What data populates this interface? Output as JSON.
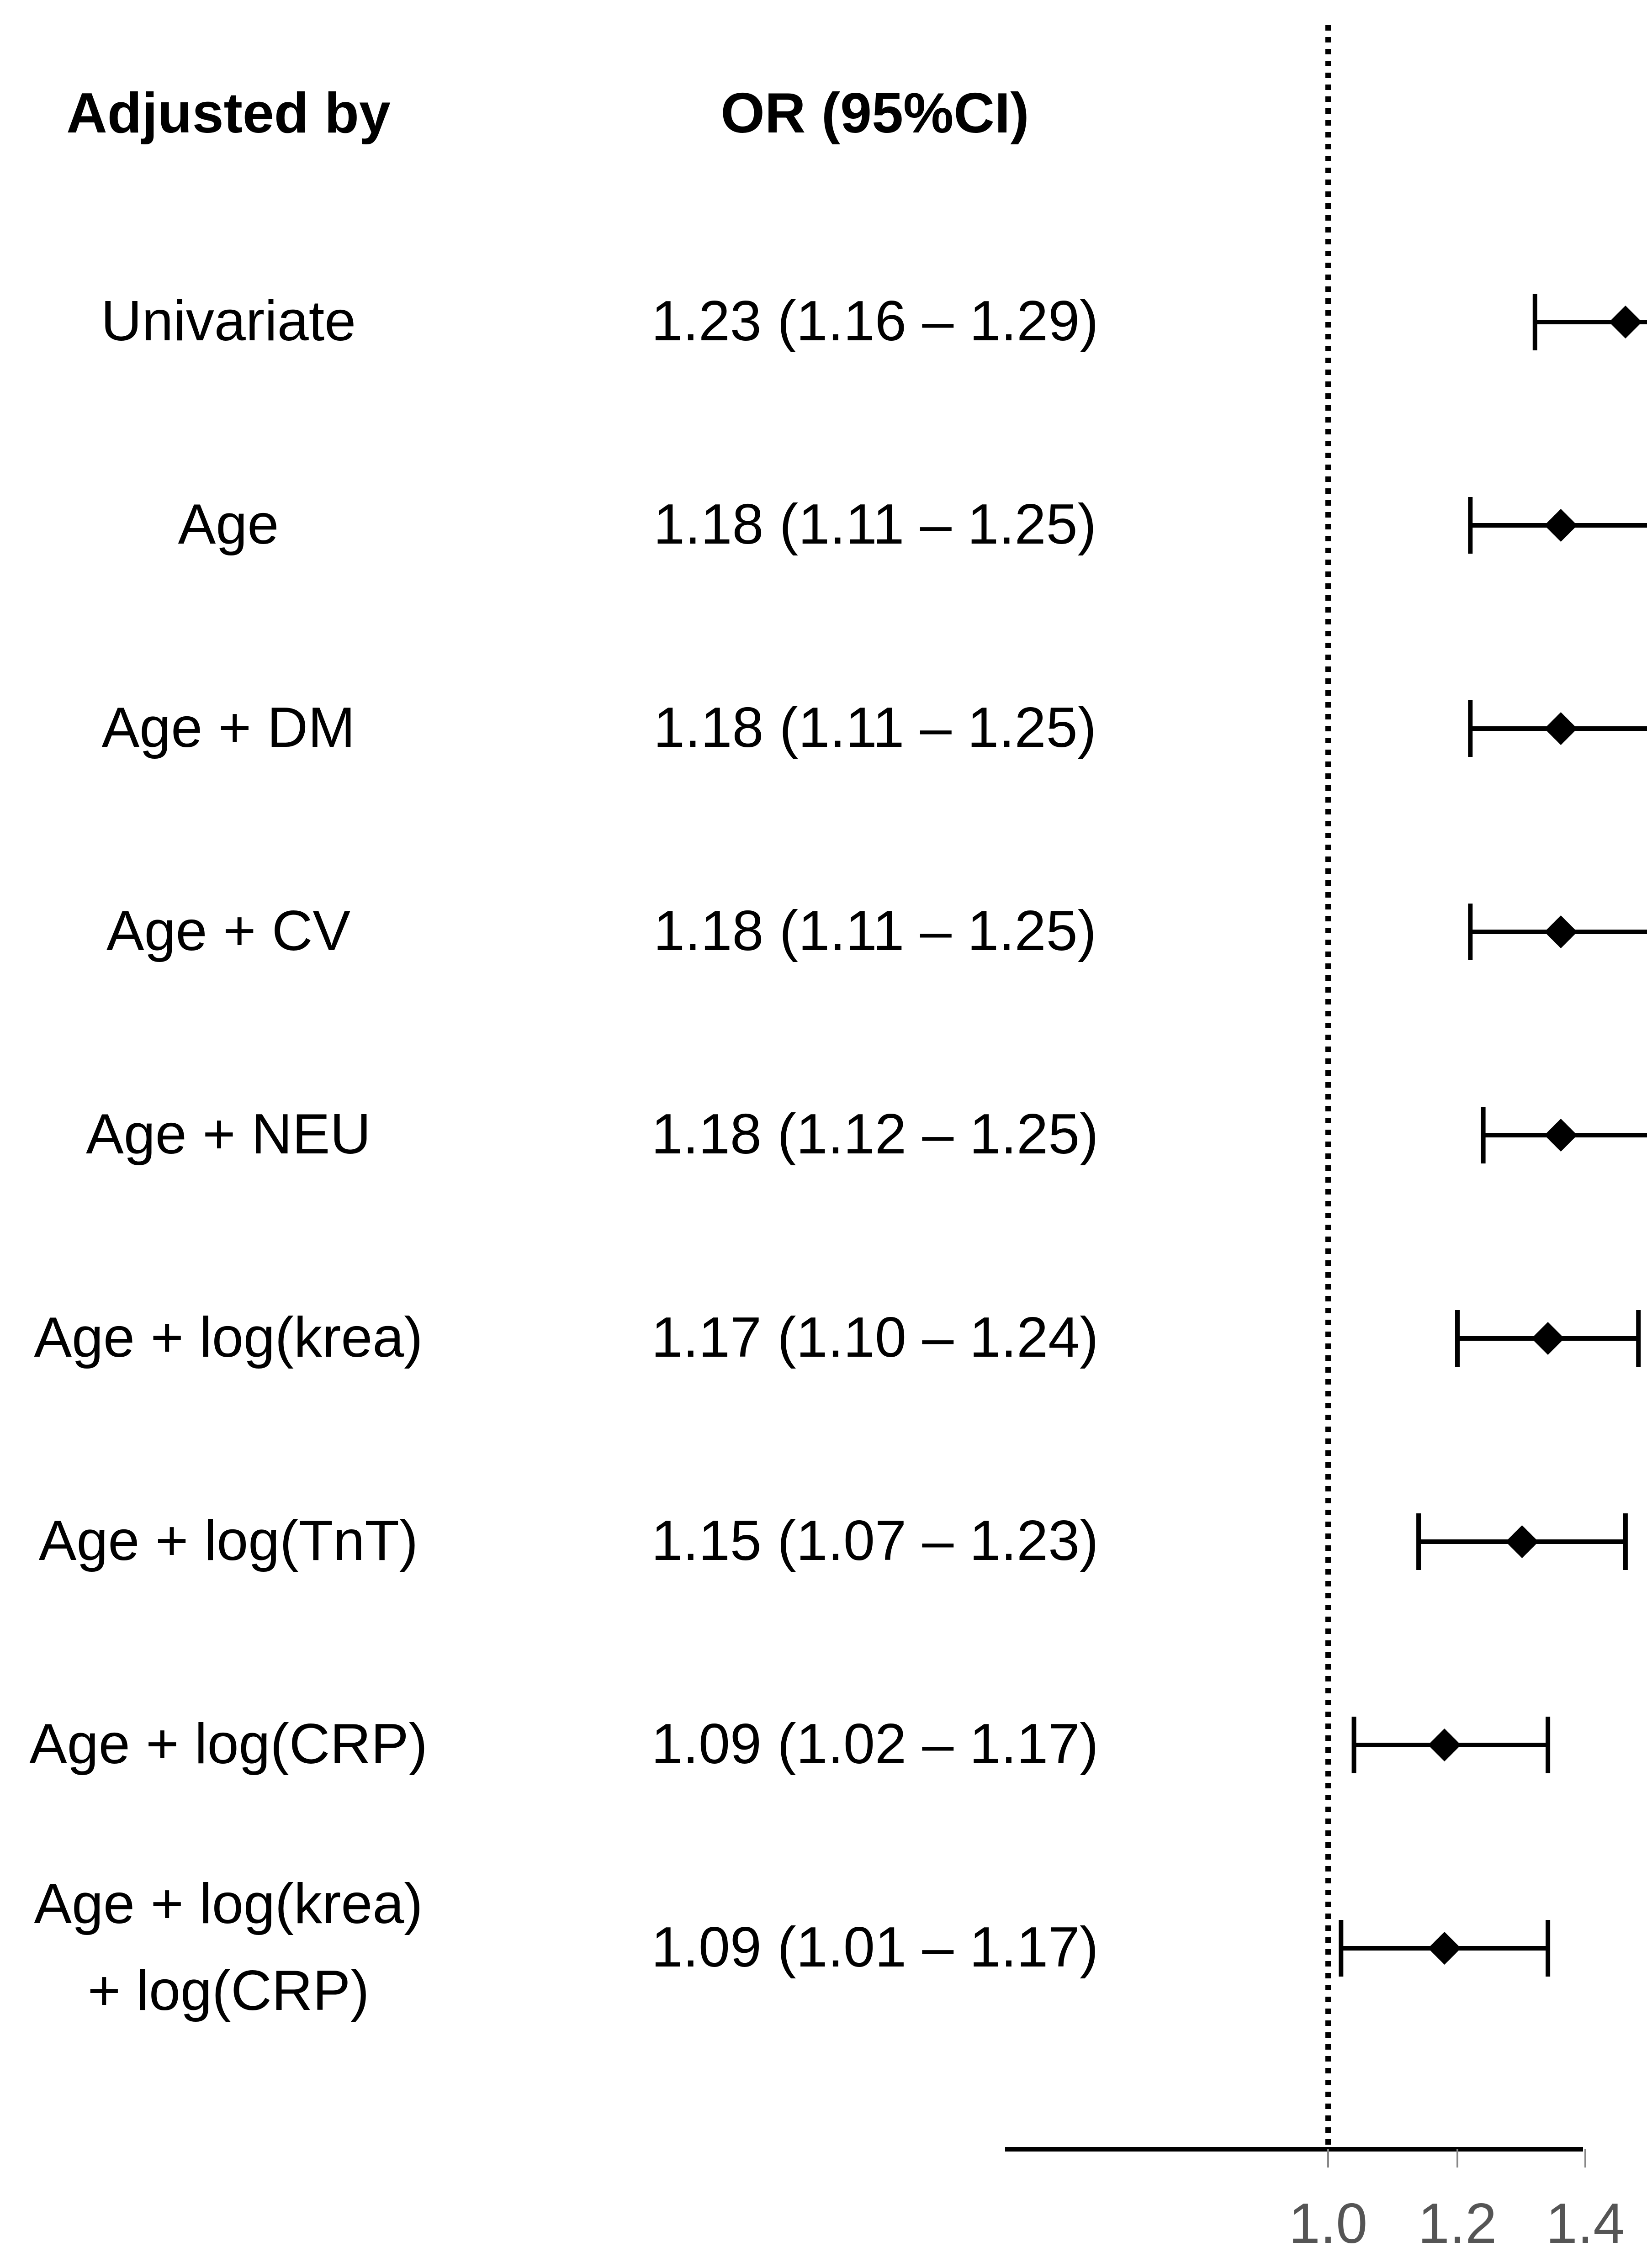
{
  "chart_data": {
    "type": "forest",
    "headers": {
      "label": "Adjusted by",
      "estimate": "OR (95%CI)"
    },
    "reference_value": 1.0,
    "xlim": [
      0.99,
      1.4
    ],
    "x_ticks": [
      "1.0",
      "1.2",
      "1.4"
    ],
    "rows": [
      {
        "label": [
          "Univariate"
        ],
        "text": "1.23 (1.16 – 1.29)",
        "or": 1.23,
        "lo": 1.16,
        "hi": 1.29
      },
      {
        "label": [
          "Age"
        ],
        "text": "1.18 (1.11 – 1.25)",
        "or": 1.18,
        "lo": 1.11,
        "hi": 1.25
      },
      {
        "label": [
          "Age + DM"
        ],
        "text": "1.18 (1.11 – 1.25)",
        "or": 1.18,
        "lo": 1.11,
        "hi": 1.25
      },
      {
        "label": [
          "Age + CV"
        ],
        "text": "1.18 (1.11 – 1.25)",
        "or": 1.18,
        "lo": 1.11,
        "hi": 1.25
      },
      {
        "label": [
          "Age + NEU"
        ],
        "text": "1.18 (1.12 – 1.25)",
        "or": 1.18,
        "lo": 1.12,
        "hi": 1.25
      },
      {
        "label": [
          "Age + log(krea)"
        ],
        "text": "1.17 (1.10 – 1.24)",
        "or": 1.17,
        "lo": 1.1,
        "hi": 1.24
      },
      {
        "label": [
          "Age + log(TnT)"
        ],
        "text": "1.15 (1.07 – 1.23)",
        "or": 1.15,
        "lo": 1.07,
        "hi": 1.23
      },
      {
        "label": [
          "Age + log(CRP)"
        ],
        "text": "1.09 (1.02 – 1.17)",
        "or": 1.09,
        "lo": 1.02,
        "hi": 1.17
      },
      {
        "label": [
          "Age + log(krea)",
          "+ log(CRP)"
        ],
        "text": "1.09 (1.01 – 1.17)",
        "or": 1.09,
        "lo": 1.01,
        "hi": 1.17
      }
    ]
  }
}
